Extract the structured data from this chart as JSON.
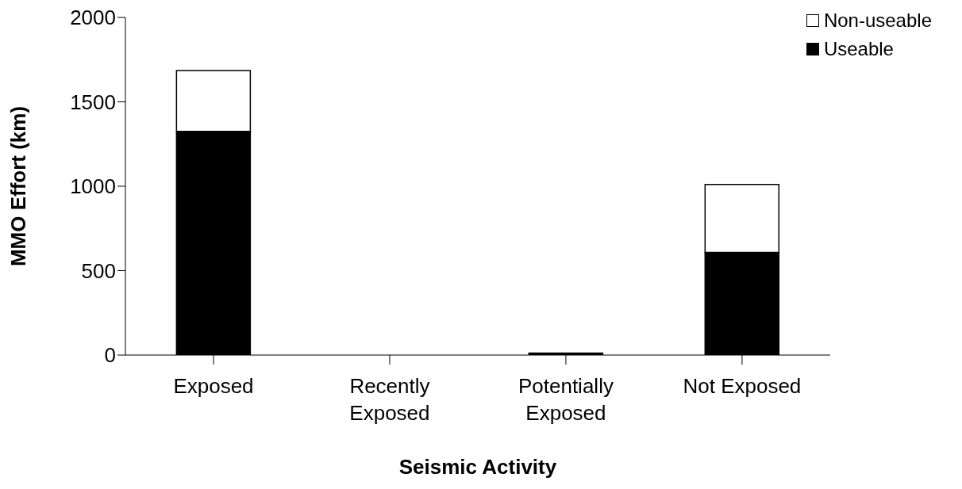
{
  "chart_data": {
    "type": "bar",
    "stacked": true,
    "xlabel": "Seismic Activity",
    "ylabel": "MMO Effort (km)",
    "categories": [
      "Exposed",
      "Recently Exposed",
      "Potentially Exposed",
      "Not Exposed"
    ],
    "series": [
      {
        "name": "Useable",
        "color": "#000000",
        "values": [
          1325,
          0,
          12,
          608
        ]
      },
      {
        "name": "Non-useable",
        "color": "#ffffff",
        "values": [
          360,
          0,
          null,
          402
        ]
      }
    ],
    "ylim": [
      0,
      2000
    ],
    "yticks": [
      0,
      500,
      1000,
      1500,
      2000
    ],
    "grid": false,
    "legend": "top right"
  }
}
